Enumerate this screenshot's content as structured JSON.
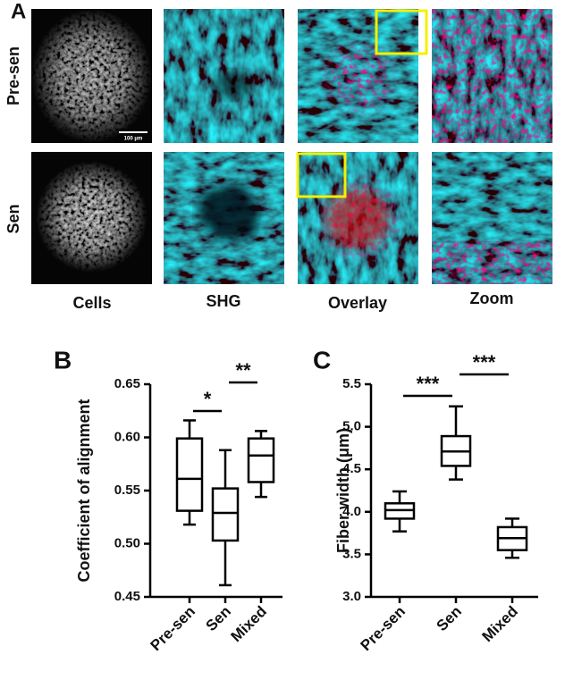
{
  "panel_a": {
    "label": "A",
    "rows": [
      "Pre-sen",
      "Sen"
    ],
    "columns": [
      "Cells",
      "SHG",
      "Overlay",
      "Zoom"
    ],
    "scale_bar": "100 μm"
  },
  "chart_data": [
    {
      "type": "box",
      "panel": "B",
      "y_label": "Coefficient of alignment",
      "categories": [
        "Pre-sen",
        "Sen",
        "Mixed"
      ],
      "whisker_low": [
        0.518,
        0.461,
        0.544
      ],
      "q1": [
        0.531,
        0.503,
        0.558
      ],
      "median": [
        0.561,
        0.529,
        0.583
      ],
      "q3": [
        0.599,
        0.552,
        0.599
      ],
      "whisker_high": [
        0.616,
        0.588,
        0.606
      ],
      "ylim": [
        0.45,
        0.65
      ],
      "yticks": [
        0.45,
        {
          "value": 0.5,
          "label": "0.50"
        },
        0.55,
        {
          "value": 0.6,
          "label": "0.60"
        },
        0.65
      ],
      "annotations": [
        "*",
        "**"
      ],
      "color": "#000000"
    },
    {
      "type": "box",
      "panel": "C",
      "y_label": "Fiber width (μm)",
      "categories": [
        "Pre-sen",
        "Sen",
        "Mixed"
      ],
      "whisker_low": [
        3.77,
        4.38,
        3.46
      ],
      "q1": [
        3.92,
        4.54,
        3.55
      ],
      "median": [
        4.02,
        4.71,
        3.69
      ],
      "q3": [
        4.1,
        4.89,
        3.82
      ],
      "whisker_high": [
        4.24,
        5.24,
        3.92
      ],
      "ylim": [
        3.0,
        5.5
      ],
      "yticks": [
        {
          "value": 3.0,
          "label": "3.0"
        },
        3.5,
        {
          "value": 4.0,
          "label": "4.0"
        },
        4.5,
        {
          "value": 5.0,
          "label": "5.0"
        },
        5.5
      ],
      "annotations": [
        "***",
        "***"
      ],
      "color": "#000000"
    }
  ]
}
